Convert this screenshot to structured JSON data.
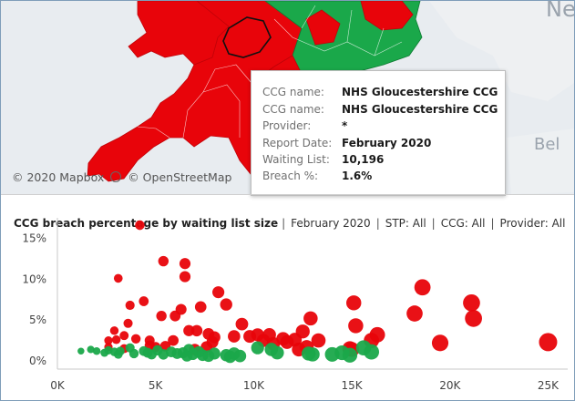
{
  "map": {
    "credit_mapbox": "© 2020 Mapbox",
    "credit_osm": "© OpenStreetMap",
    "label_ne": "Ne",
    "label_bel": "Bel"
  },
  "tooltip": {
    "rows": [
      {
        "label": "CCG name:",
        "value": "NHS Gloucestershire CCG"
      },
      {
        "label": "CCG name:",
        "value": "NHS Gloucestershire CCG"
      },
      {
        "label": "Provider:",
        "value": "*"
      },
      {
        "label": "Report Date:",
        "value": "February 2020"
      },
      {
        "label": "Waiting List:",
        "value": "10,196"
      },
      {
        "label": "Breach %:",
        "value": "1.6%"
      }
    ]
  },
  "header": {
    "title": "CCG breach percentage by waiting list size",
    "filters": [
      "February 2020",
      "STP: All",
      "CCG: All",
      "Provider: All"
    ]
  },
  "colors": {
    "breach_high": "#e8040a",
    "breach_low": "#1aa84a",
    "map_bg": "#e8ecf0"
  },
  "chart_data": {
    "type": "scatter",
    "title": "CCG breach percentage by waiting list size",
    "x_ticks": [
      "0K",
      "5K",
      "10K",
      "15K",
      "20K",
      "25K"
    ],
    "y_ticks": [
      "0%",
      "5%",
      "10%",
      "15%"
    ],
    "xlim": [
      0,
      26000
    ],
    "ylim": [
      -1,
      17.5
    ],
    "series": [
      {
        "color": "#e8040a",
        "points": [
          [
            2600,
            1.7
          ],
          [
            3000,
            2.6
          ],
          [
            3400,
            1.5
          ],
          [
            3600,
            4.6
          ],
          [
            3700,
            6.8
          ],
          [
            3400,
            3.1
          ],
          [
            2900,
            3.7
          ],
          [
            2600,
            2.5
          ],
          [
            3100,
            10.1
          ],
          [
            4000,
            2.7
          ],
          [
            4200,
            16.6
          ],
          [
            4400,
            7.3
          ],
          [
            4700,
            1.9
          ],
          [
            5000,
            1.7
          ],
          [
            4700,
            2.5
          ],
          [
            5300,
            5.5
          ],
          [
            5400,
            12.2
          ],
          [
            5500,
            1.8
          ],
          [
            5900,
            2.5
          ],
          [
            6000,
            5.5
          ],
          [
            6300,
            6.3
          ],
          [
            6500,
            10.3
          ],
          [
            6500,
            11.9
          ],
          [
            6700,
            3.7
          ],
          [
            7000,
            1.4
          ],
          [
            7100,
            3.7
          ],
          [
            7300,
            6.6
          ],
          [
            7600,
            1.7
          ],
          [
            7700,
            3.3
          ],
          [
            7900,
            2.3
          ],
          [
            8000,
            2.9
          ],
          [
            8200,
            8.4
          ],
          [
            8600,
            6.9
          ],
          [
            9000,
            3.0
          ],
          [
            9400,
            4.5
          ],
          [
            9800,
            3.0
          ],
          [
            10200,
            3.2
          ],
          [
            10500,
            2.5
          ],
          [
            10800,
            3.2
          ],
          [
            11000,
            2.1
          ],
          [
            11500,
            2.7
          ],
          [
            11700,
            2.3
          ],
          [
            12100,
            2.6
          ],
          [
            12300,
            1.4
          ],
          [
            12500,
            3.6
          ],
          [
            12700,
            1.7
          ],
          [
            12900,
            5.2
          ],
          [
            13300,
            2.5
          ],
          [
            14900,
            1.5
          ],
          [
            15200,
            4.3
          ],
          [
            15100,
            7.1
          ],
          [
            15000,
            1.4
          ],
          [
            16000,
            2.5
          ],
          [
            16300,
            3.2
          ],
          [
            18200,
            5.8
          ],
          [
            18600,
            9.0
          ],
          [
            19500,
            2.2
          ],
          [
            21100,
            7.1
          ],
          [
            21200,
            5.2
          ],
          [
            25000,
            2.3
          ]
        ]
      },
      {
        "color": "#1aa84a",
        "points": [
          [
            1200,
            1.2
          ],
          [
            1700,
            1.4
          ],
          [
            2000,
            1.2
          ],
          [
            2400,
            1.0
          ],
          [
            2600,
            1.3
          ],
          [
            2900,
            1.1
          ],
          [
            3100,
            0.8
          ],
          [
            3200,
            1.2
          ],
          [
            3700,
            1.6
          ],
          [
            3900,
            0.9
          ],
          [
            4400,
            1.2
          ],
          [
            4600,
            1.0
          ],
          [
            4800,
            0.8
          ],
          [
            5100,
            1.3
          ],
          [
            5400,
            0.8
          ],
          [
            5800,
            1.1
          ],
          [
            6100,
            0.9
          ],
          [
            6400,
            1.0
          ],
          [
            6600,
            0.6
          ],
          [
            6700,
            1.4
          ],
          [
            6900,
            0.8
          ],
          [
            7200,
            1.1
          ],
          [
            7400,
            0.7
          ],
          [
            7700,
            0.6
          ],
          [
            8000,
            0.9
          ],
          [
            8600,
            0.7
          ],
          [
            8800,
            0.5
          ],
          [
            9000,
            0.9
          ],
          [
            9300,
            0.6
          ],
          [
            10200,
            1.6
          ],
          [
            10900,
            1.4
          ],
          [
            11200,
            1.0
          ],
          [
            12800,
            0.9
          ],
          [
            13000,
            0.8
          ],
          [
            14000,
            0.8
          ],
          [
            14500,
            1.0
          ],
          [
            14900,
            0.7
          ],
          [
            15600,
            1.6
          ],
          [
            16000,
            1.1
          ]
        ]
      }
    ]
  }
}
